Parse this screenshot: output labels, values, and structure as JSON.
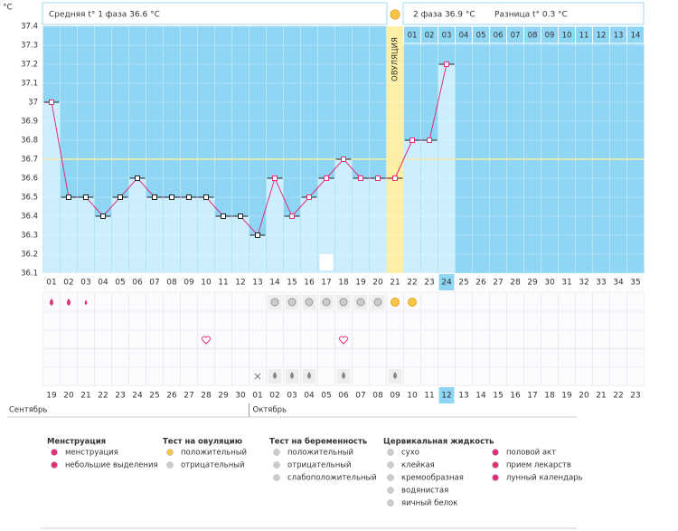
{
  "chart_data": {
    "type": "line",
    "y_unit": "°C",
    "phase1_text": "Средняя t° 1 фаза 36.6 °C",
    "phase2_text": "2 фаза 36.9 °C",
    "diff_text": "Разница t° 0.3 °C",
    "ovulation_label": "ОВУЛЯЦИЯ",
    "categories": [
      "01",
      "02",
      "03",
      "04",
      "05",
      "06",
      "07",
      "08",
      "09",
      "10",
      "11",
      "12",
      "13",
      "14",
      "15",
      "16",
      "17",
      "18",
      "19",
      "20",
      "21",
      "22",
      "23",
      "24",
      "25",
      "26",
      "27",
      "28",
      "29",
      "30",
      "31",
      "32",
      "33",
      "34",
      "35"
    ],
    "values": [
      37,
      36.5,
      36.5,
      36.4,
      36.5,
      36.6,
      36.5,
      36.5,
      36.5,
      36.5,
      36.4,
      36.4,
      36.3,
      36.6,
      36.4,
      36.5,
      36.6,
      36.7,
      36.6,
      36.6,
      36.6,
      36.8,
      36.8,
      37.2,
      null,
      null,
      null,
      null,
      null,
      null,
      null,
      null,
      null,
      null,
      null
    ],
    "color": "#e0307a",
    "coverline": 36.7,
    "ylim": [
      36.1,
      37.4
    ],
    "yticks": [
      36.1,
      36.2,
      36.3,
      36.4,
      36.5,
      36.6,
      36.7,
      36.8,
      36.9,
      37,
      37.1,
      37.2,
      37.3,
      37.4
    ],
    "grid": true,
    "phase2_days": [
      "01",
      "02",
      "03",
      "04",
      "05",
      "06",
      "07",
      "08",
      "09",
      "10",
      "11",
      "12",
      "13",
      "14"
    ],
    "dates": [
      "19",
      "20",
      "21",
      "22",
      "23",
      "24",
      "25",
      "26",
      "27",
      "28",
      "29",
      "30",
      "01",
      "02",
      "03",
      "04",
      "05",
      "06",
      "07",
      "08",
      "09",
      "10",
      "11",
      "12",
      "13",
      "14",
      "15",
      "16",
      "17",
      "18",
      "19",
      "20",
      "21",
      "22",
      "23"
    ],
    "months": [
      "Сентябрь",
      "Октябрь"
    ]
  },
  "legend": [
    {
      "title": "Менструация",
      "items": [
        "менструация",
        "небольшие выделения"
      ]
    },
    {
      "title": "Тест на овуляцию",
      "items": [
        "положительный",
        "отрицательный"
      ]
    },
    {
      "title": "Тест на беременность",
      "items": [
        "положительный",
        "отрицательный",
        "слабоположительный"
      ]
    },
    {
      "title": "Цервикальная жидкость",
      "items": [
        "сухо",
        "клейкая",
        "кремообразная",
        "водянистая",
        "яичный белок"
      ]
    },
    {
      "items": [
        "половой акт",
        "прием лекарств",
        "лунный календарь"
      ]
    }
  ]
}
